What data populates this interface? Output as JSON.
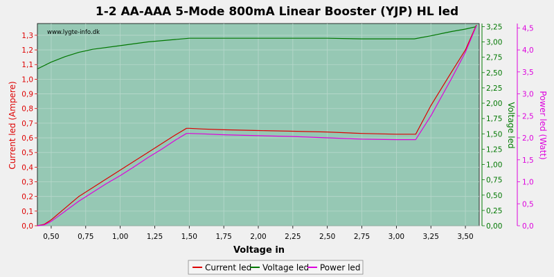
{
  "chart_data": {
    "type": "line",
    "title": "1-2 AA-AAA 5-Mode 800mA Linear Booster (YJP) HL led",
    "watermark": "www.lygte-info.dk",
    "xlabel": "Voltage in",
    "ylabel_left": "Current led (Ampere)",
    "ylabel_right1": "Voltage led",
    "ylabel_right2": "Power led (Watt)",
    "xlim": [
      0.4,
      3.6
    ],
    "ylim_left": [
      0,
      1.38
    ],
    "ylim_right1": [
      0,
      3.3
    ],
    "ylim_right2": [
      0,
      4.6
    ],
    "xticks": [
      "0,50",
      "0,75",
      "1,00",
      "1,25",
      "1,50",
      "1,75",
      "2,00",
      "2,25",
      "2,50",
      "2,75",
      "3,00",
      "3,25",
      "3,50"
    ],
    "yticks_left": [
      "0,0",
      "0,1",
      "0,2",
      "0,3",
      "0,4",
      "0,5",
      "0,6",
      "0,7",
      "0,8",
      "0,9",
      "1,0",
      "1,1",
      "1,2",
      "1,3"
    ],
    "yticks_right1": [
      "0,00",
      "0,25",
      "0,50",
      "0,75",
      "1,00",
      "1,25",
      "1,50",
      "1,75",
      "2,00",
      "2,25",
      "2,50",
      "2,75",
      "3,00",
      "3,25"
    ],
    "yticks_right2": [
      "0,0",
      "0,5",
      "1,0",
      "1,5",
      "2,0",
      "2,5",
      "3,0",
      "3,5",
      "4,0",
      "4,5"
    ],
    "grid": true,
    "legend_position": "bottom-center",
    "colors": {
      "current": "#dd0000",
      "voltage": "#007700",
      "power": "#dd00dd",
      "plot_bg": "#96c8b4",
      "frame": "#c8d8d0"
    },
    "series": [
      {
        "name": "Current led",
        "axis": "left",
        "x": [
          0.4,
          0.45,
          0.5,
          0.6,
          0.7,
          0.8,
          0.9,
          1.0,
          1.1,
          1.2,
          1.3,
          1.4,
          1.48,
          1.5,
          1.6,
          1.75,
          2.0,
          2.25,
          2.5,
          2.75,
          3.0,
          3.14,
          3.25,
          3.4,
          3.5,
          3.58
        ],
        "values": [
          0.0,
          0.01,
          0.04,
          0.12,
          0.2,
          0.26,
          0.32,
          0.38,
          0.44,
          0.5,
          0.56,
          0.62,
          0.665,
          0.665,
          0.66,
          0.655,
          0.65,
          0.645,
          0.64,
          0.63,
          0.625,
          0.625,
          0.82,
          1.05,
          1.2,
          1.37
        ]
      },
      {
        "name": "Voltage led",
        "axis": "right1",
        "x": [
          0.4,
          0.5,
          0.6,
          0.7,
          0.8,
          1.0,
          1.2,
          1.4,
          1.5,
          1.75,
          2.0,
          2.25,
          2.5,
          2.75,
          3.0,
          3.13,
          3.25,
          3.4,
          3.5,
          3.58
        ],
        "values": [
          2.56,
          2.67,
          2.76,
          2.83,
          2.88,
          2.94,
          3.0,
          3.04,
          3.06,
          3.06,
          3.06,
          3.06,
          3.06,
          3.05,
          3.05,
          3.05,
          3.1,
          3.17,
          3.21,
          3.25
        ]
      },
      {
        "name": "Power led",
        "axis": "right2",
        "x": [
          0.4,
          0.45,
          0.5,
          0.6,
          0.7,
          0.8,
          0.9,
          1.0,
          1.1,
          1.2,
          1.3,
          1.4,
          1.48,
          1.5,
          1.6,
          1.75,
          2.0,
          2.25,
          2.5,
          2.75,
          3.0,
          3.14,
          3.25,
          3.4,
          3.5,
          3.58
        ],
        "values": [
          0.0,
          0.02,
          0.1,
          0.33,
          0.56,
          0.76,
          0.96,
          1.14,
          1.34,
          1.55,
          1.74,
          1.95,
          2.1,
          2.1,
          2.09,
          2.07,
          2.05,
          2.03,
          2.0,
          1.97,
          1.96,
          1.96,
          2.5,
          3.35,
          3.95,
          4.55
        ]
      }
    ]
  }
}
